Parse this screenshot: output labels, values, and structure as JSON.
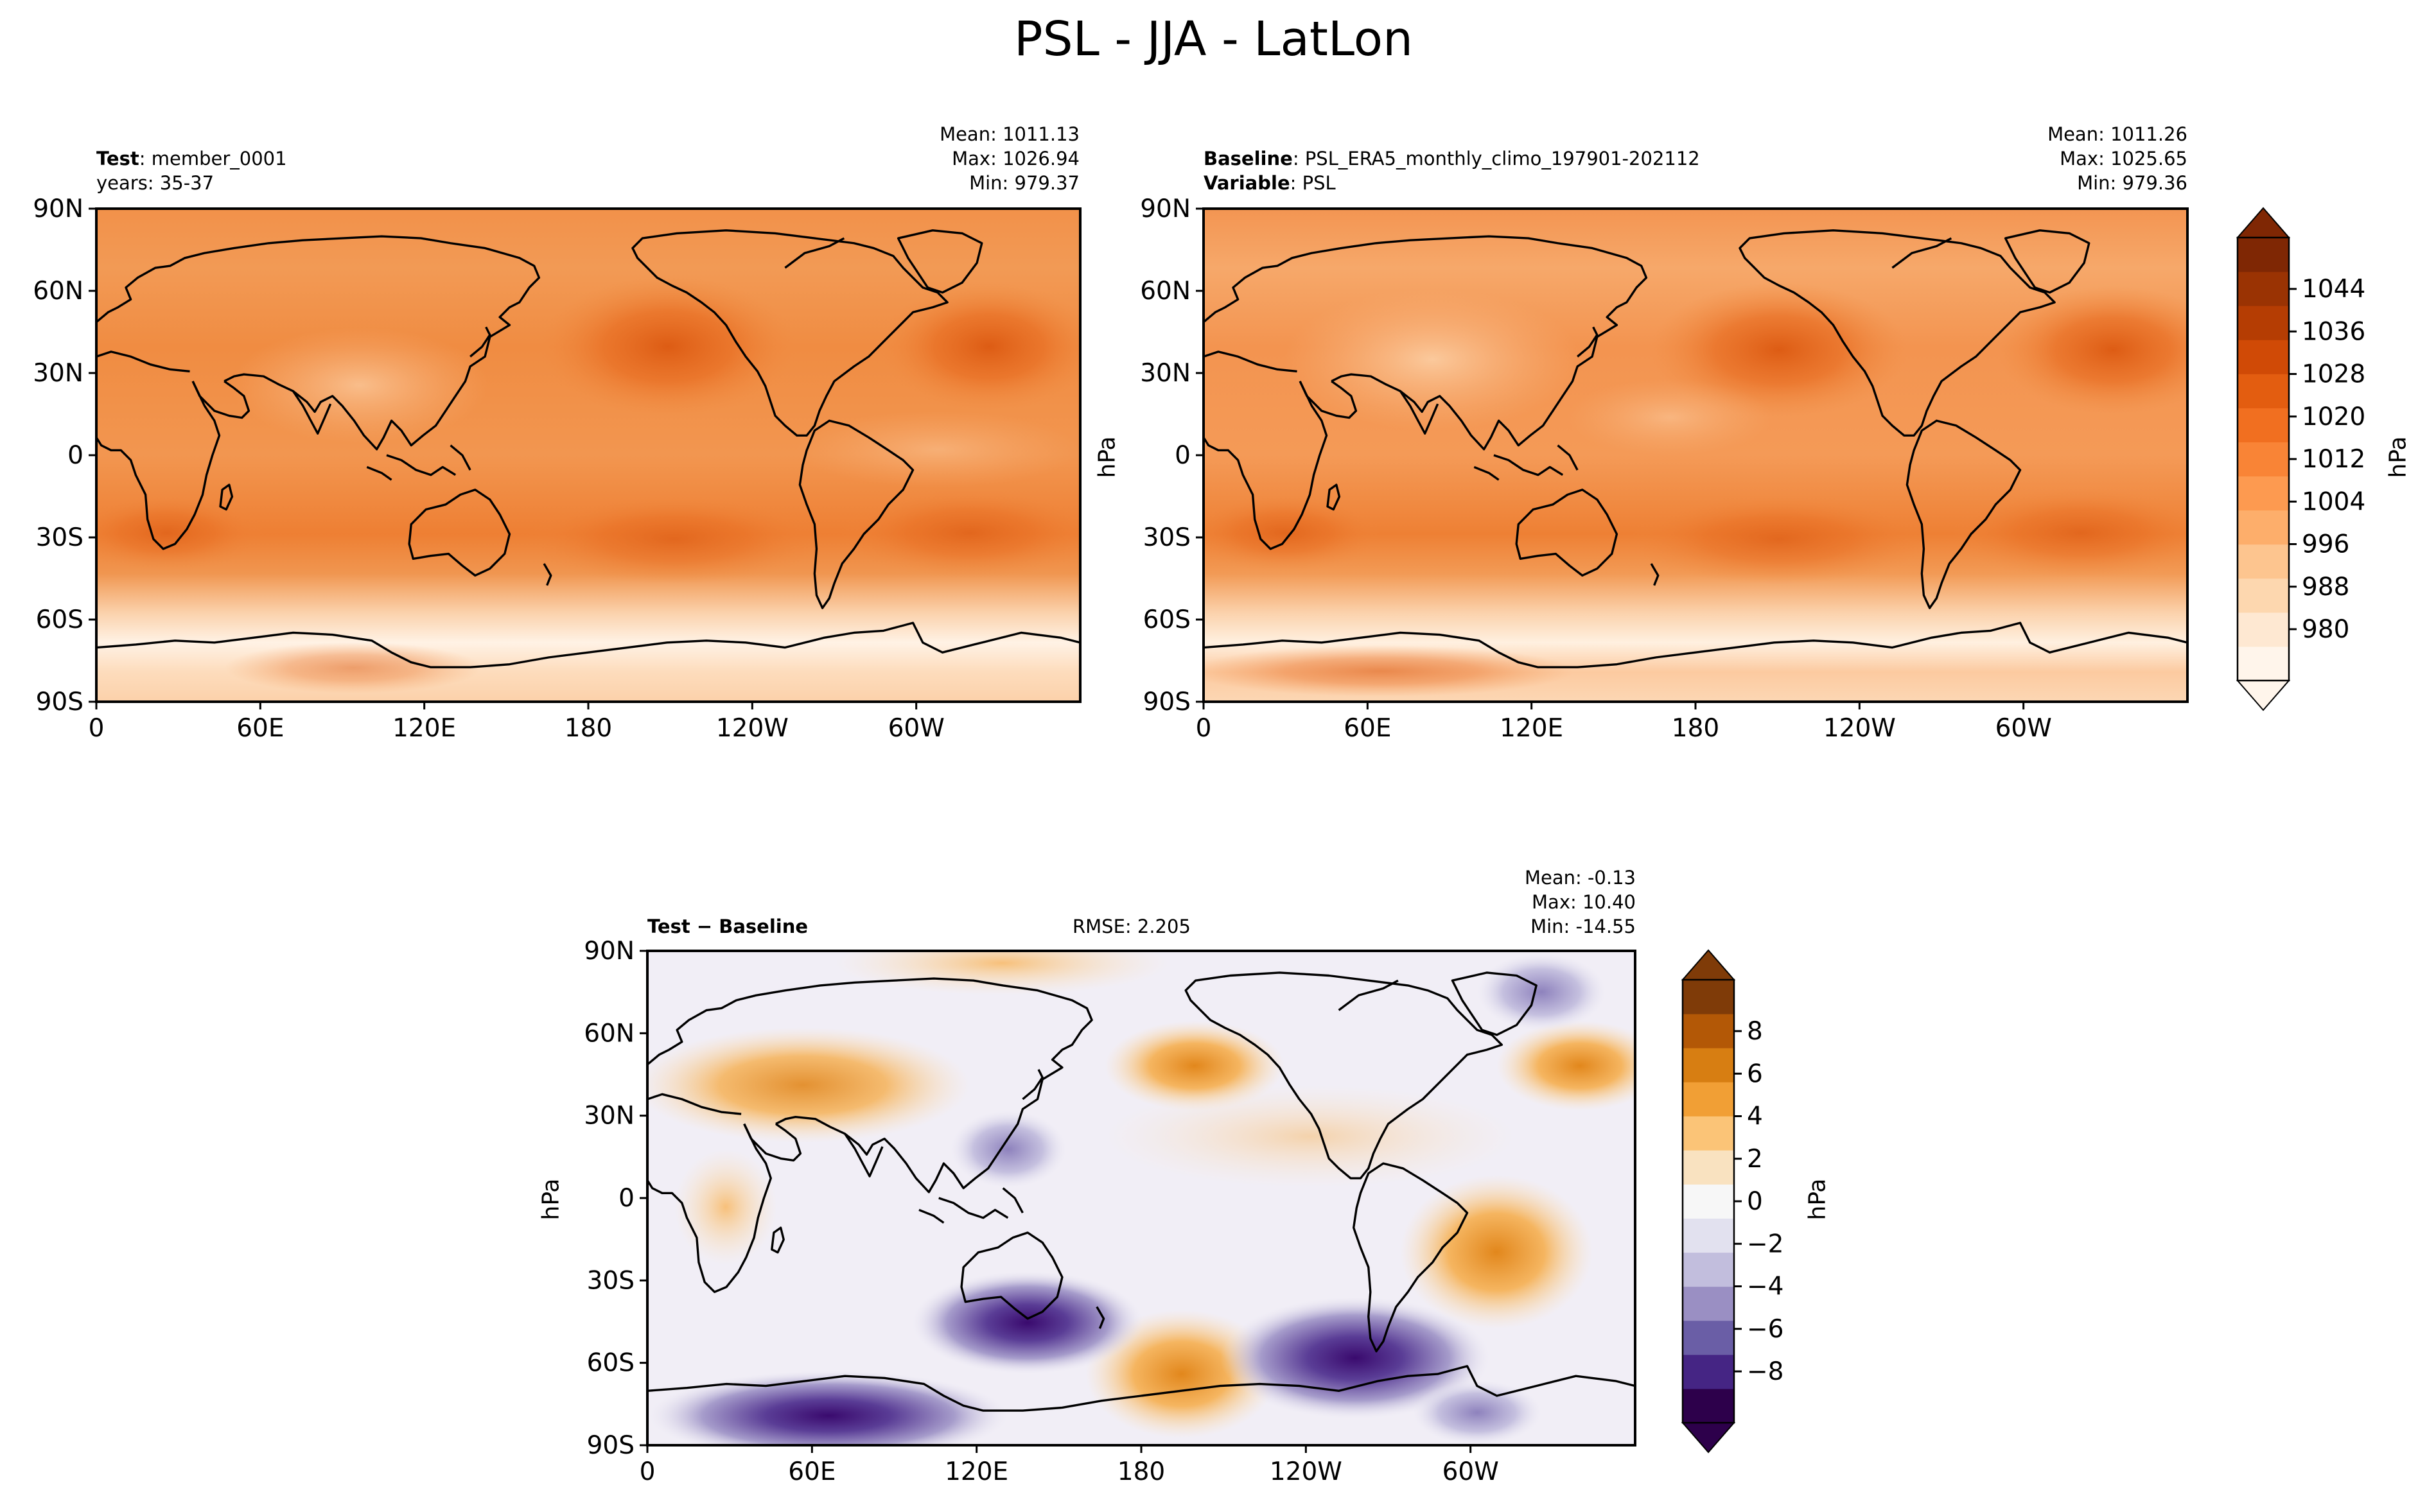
{
  "figure": {
    "title": "PSL - JJA - LatLon"
  },
  "colors": {
    "test_base": "#f28d45",
    "baseline_base": "#f4924a",
    "diff_base": "#f4f1f6",
    "coast": "#000000"
  },
  "panels": {
    "test": {
      "label_bold": "Test",
      "label_value": "member_0001",
      "sub": "years: 35-37",
      "mean": "Mean: 1011.13",
      "max": "Max: 1026.94",
      "min": "Min: 979.37"
    },
    "baseline": {
      "label_bold": "Baseline",
      "label_value": "PSL_ERA5_monthly_climo_197901-202112",
      "sub_bold": "Variable",
      "sub_value": "PSL",
      "mean": "Mean: 1011.26",
      "max": "Max: 1025.65",
      "min": "Min: 979.36",
      "units": "hPa"
    },
    "diff": {
      "label": "Test − Baseline",
      "rmse": "RMSE: 2.205",
      "mean": "Mean: -0.13",
      "max": "Max: 10.40",
      "min": "Min: -14.55",
      "units": "hPa"
    }
  },
  "axes": {
    "lat_ticks": [
      "90N",
      "60N",
      "30N",
      "0",
      "30S",
      "60S",
      "90S"
    ],
    "lon_ticks": [
      "0",
      "60E",
      "120E",
      "180",
      "120W",
      "60W"
    ]
  },
  "colorbars": {
    "main": {
      "units": "hPa",
      "ticks": [
        "1044",
        "1036",
        "1028",
        "1020",
        "1012",
        "1004",
        "996",
        "988",
        "980"
      ],
      "colors": [
        "#fff5eb",
        "#fee8d2",
        "#fdd7af",
        "#fdc58f",
        "#fdae6b",
        "#fd9a50",
        "#f98436",
        "#f16f20",
        "#e35d10",
        "#d04a06",
        "#b53d03",
        "#9a3303",
        "#7f2704"
      ]
    },
    "diff": {
      "units": "hPa",
      "ticks": [
        "8",
        "6",
        "4",
        "2",
        "0",
        "−2",
        "−4",
        "−6",
        "−8"
      ],
      "colors": [
        "#2d004b",
        "#452584",
        "#6a5ea6",
        "#9a8fc3",
        "#c2bedd",
        "#e2e1ef",
        "#f7f7f7",
        "#f9e2c0",
        "#fbc477",
        "#f19f35",
        "#d77e12",
        "#b35806",
        "#7f3b08"
      ]
    }
  }
}
